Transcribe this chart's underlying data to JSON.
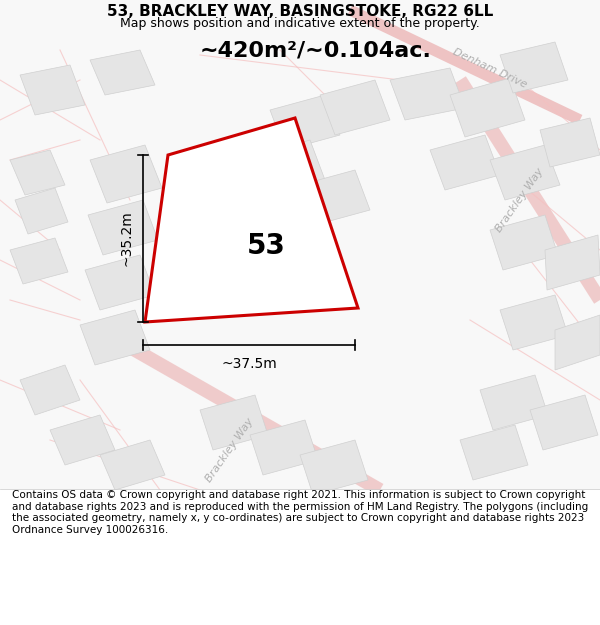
{
  "title": "53, BRACKLEY WAY, BASINGSTOKE, RG22 6LL",
  "subtitle": "Map shows position and indicative extent of the property.",
  "area_label": "~420m²/~0.104ac.",
  "number_label": "53",
  "width_label": "~37.5m",
  "height_label": "~35.2m",
  "footer": "Contains OS data © Crown copyright and database right 2021. This information is subject to Crown copyright and database rights 2023 and is reproduced with the permission of HM Land Registry. The polygons (including the associated geometry, namely x, y co-ordinates) are subject to Crown copyright and database rights 2023 Ordnance Survey 100026316.",
  "bg_color": "#ffffff",
  "map_bg": "#f5f5f5",
  "road_color_light": "#f5c0c0",
  "road_color_medium": "#f0a0a0",
  "block_color": "#e0e0e0",
  "block_edge": "#cccccc",
  "red_plot": "#cc0000",
  "street_label_color": "#aaaaaa",
  "title_fontsize": 11,
  "subtitle_fontsize": 9,
  "area_fontsize": 16,
  "number_fontsize": 20,
  "dim_fontsize": 10,
  "footer_fontsize": 7.5
}
